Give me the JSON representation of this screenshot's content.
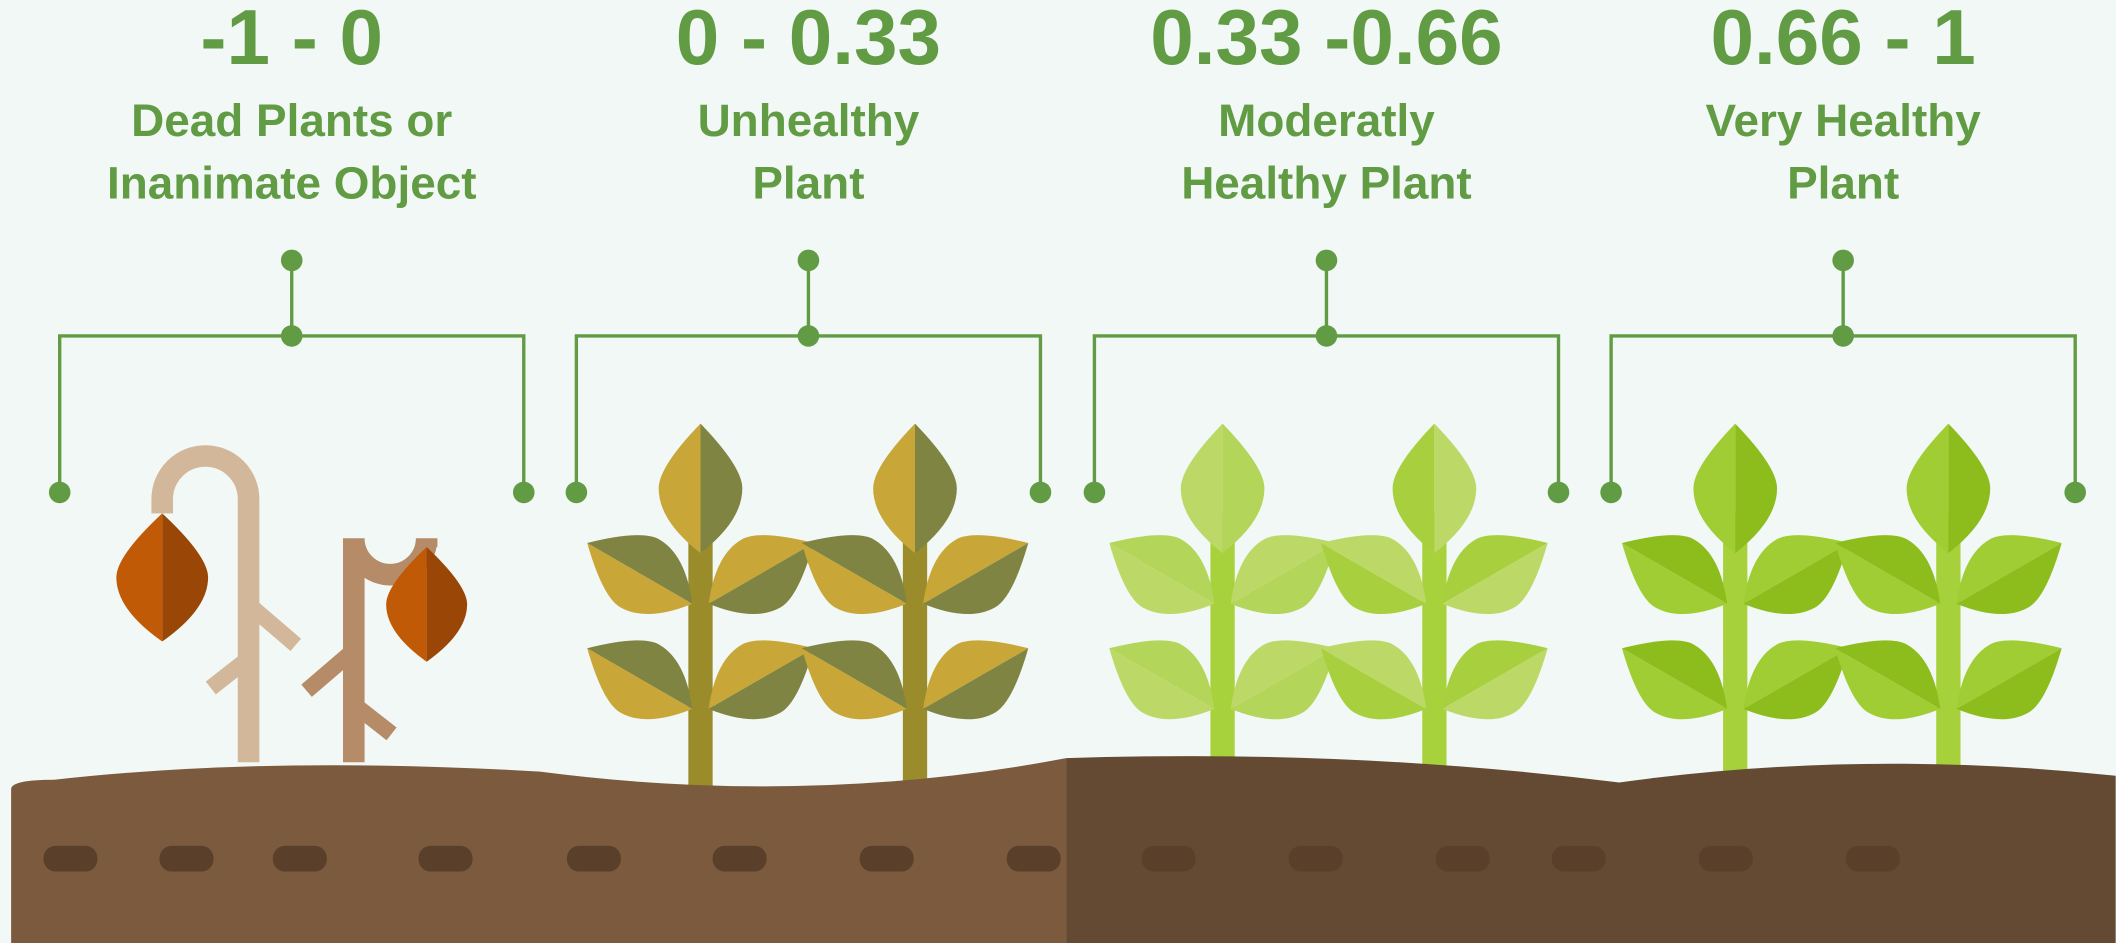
{
  "groups": [
    {
      "range": "-1 - 0",
      "label": [
        "Dead Plants or",
        "Inanimate Object"
      ]
    },
    {
      "range": "0 - 0.33",
      "label": [
        "Unhealthy",
        "Plant"
      ]
    },
    {
      "range": "0.33 -0.66",
      "label": [
        "Moderatly",
        "Healthy Plant"
      ]
    },
    {
      "range": "0.66 - 1",
      "label": [
        "Very Healthy",
        "Plant"
      ]
    }
  ]
}
